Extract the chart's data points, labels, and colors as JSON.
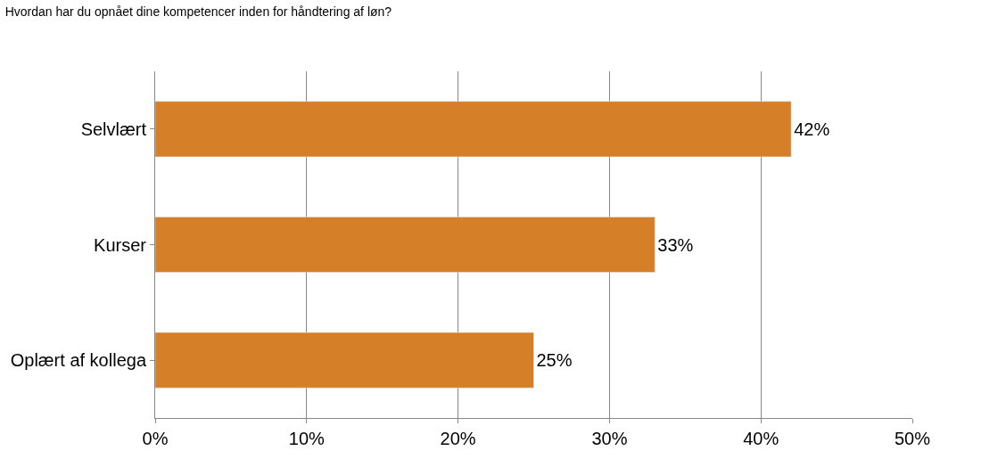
{
  "chart_data": {
    "type": "bar",
    "orientation": "horizontal",
    "title": "Hvordan har du opnået dine kompetencer inden for håndtering af løn?",
    "categories": [
      "Selvlært",
      "Kurser",
      "Oplært af kollega"
    ],
    "values": [
      42,
      33,
      25
    ],
    "value_labels": [
      "42%",
      "33%",
      "25%"
    ],
    "color": "#d58029",
    "xlim": [
      0,
      50
    ],
    "xticks": [
      {
        "value": 0,
        "label": "0%"
      },
      {
        "value": 10,
        "label": "10%"
      },
      {
        "value": 20,
        "label": "20%"
      },
      {
        "value": 30,
        "label": "30%"
      },
      {
        "value": 40,
        "label": "40%"
      },
      {
        "value": 50,
        "label": "50%"
      }
    ],
    "grid": "x",
    "legend": false
  }
}
